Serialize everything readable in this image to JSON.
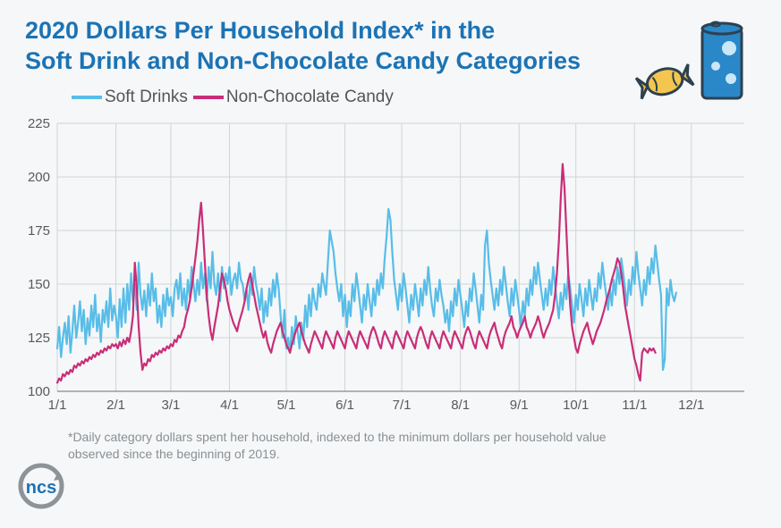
{
  "title_line1": "2020 Dollars Per Household Index* in the",
  "title_line2": "Soft Drink and Non-Chocolate Candy Categories",
  "title_color": "#1b73b5",
  "legend": [
    {
      "label": "Soft Drinks",
      "color": "#58bde8"
    },
    {
      "label": "Non-Chocolate Candy",
      "color": "#c92d78"
    }
  ],
  "footnote": "*Daily category dollars spent her household, indexed to the minimum dollars per household value observed since the beginning of 2019.",
  "logo_text": "ncs",
  "icons": {
    "can_color": "#2a88c9",
    "can_bubble_color": "#c9e7f7",
    "candy_color": "#f4c64f",
    "stroke": "#2d4150"
  },
  "chart": {
    "type": "line",
    "background_color": "#f5f7f8",
    "grid_color": "#d0d4d6",
    "axis_color": "#6b6e70",
    "axis_fontsize": 15,
    "ylim": [
      100,
      225
    ],
    "ytick_step": 25,
    "yticks": [
      100,
      125,
      150,
      175,
      200,
      225
    ],
    "x_count": 364,
    "xticks": [
      {
        "pos": 0,
        "label": "1/1"
      },
      {
        "pos": 31,
        "label": "2/1"
      },
      {
        "pos": 60,
        "label": "3/1"
      },
      {
        "pos": 91,
        "label": "4/1"
      },
      {
        "pos": 121,
        "label": "5/1"
      },
      {
        "pos": 152,
        "label": "6/1"
      },
      {
        "pos": 182,
        "label": "7/1"
      },
      {
        "pos": 213,
        "label": "8/1"
      },
      {
        "pos": 244,
        "label": "9/1"
      },
      {
        "pos": 274,
        "label": "10/1"
      },
      {
        "pos": 305,
        "label": "11/1"
      },
      {
        "pos": 335,
        "label": "12/1"
      }
    ],
    "line_width": 2.2,
    "series": [
      {
        "name": "Soft Drinks",
        "color": "#58bde8",
        "points": [
          120,
          130,
          116,
          125,
          132,
          122,
          135,
          118,
          128,
          140,
          125,
          132,
          142,
          128,
          138,
          122,
          134,
          126,
          140,
          130,
          145,
          128,
          136,
          123,
          138,
          132,
          142,
          130,
          148,
          133,
          140,
          135,
          125,
          143,
          130,
          148,
          132,
          150,
          138,
          155,
          142,
          150,
          138,
          160,
          145,
          138,
          147,
          135,
          150,
          140,
          155,
          142,
          148,
          132,
          140,
          130,
          145,
          135,
          148,
          140,
          144,
          135,
          148,
          152,
          143,
          155,
          140,
          148,
          138,
          152,
          144,
          158,
          150,
          142,
          152,
          145,
          160,
          148,
          155,
          142,
          158,
          148,
          165,
          150,
          145,
          155,
          142,
          158,
          148,
          155,
          150,
          158,
          145,
          152,
          155,
          148,
          160,
          152,
          150,
          142,
          148,
          138,
          152,
          145,
          158,
          150,
          145,
          138,
          148,
          132,
          142,
          135,
          148,
          140,
          152,
          144,
          155,
          148,
          135,
          125,
          138,
          120,
          125,
          118,
          130,
          122,
          135,
          128,
          120,
          132,
          124,
          140,
          130,
          145,
          135,
          148,
          142,
          138,
          150,
          144,
          155,
          150,
          145,
          160,
          175,
          170,
          165,
          155,
          148,
          142,
          150,
          135,
          145,
          130,
          142,
          135,
          150,
          142,
          155,
          148,
          140,
          132,
          145,
          138,
          150,
          142,
          135,
          148,
          140,
          152,
          145,
          155,
          148,
          162,
          172,
          185,
          180,
          165,
          152,
          145,
          138,
          150,
          142,
          155,
          148,
          140,
          132,
          145,
          138,
          150,
          143,
          135,
          148,
          140,
          152,
          145,
          158,
          148,
          140,
          135,
          148,
          142,
          152,
          145,
          140,
          132,
          138,
          128,
          142,
          135,
          148,
          140,
          152,
          145,
          138,
          130,
          142,
          135,
          148,
          142,
          155,
          148,
          140,
          132,
          145,
          138,
          168,
          175,
          160,
          152,
          145,
          138,
          148,
          140,
          152,
          145,
          158,
          150,
          142,
          135,
          148,
          140,
          152,
          145,
          138,
          130,
          142,
          135,
          148,
          140,
          152,
          145,
          158,
          150,
          160,
          152,
          145,
          138,
          148,
          140,
          152,
          145,
          158,
          150,
          142,
          134,
          146,
          138,
          150,
          143,
          155,
          148,
          140,
          132,
          145,
          138,
          150,
          143,
          135,
          148,
          140,
          152,
          145,
          138,
          148,
          142,
          155,
          148,
          160,
          152,
          145,
          138,
          148,
          140,
          152,
          145,
          158,
          150,
          162,
          155,
          148,
          140,
          152,
          145,
          158,
          150,
          165,
          155,
          148,
          140,
          152,
          145,
          158,
          150,
          162,
          155,
          168,
          160,
          152,
          145,
          110,
          115,
          148,
          140,
          152,
          145,
          142,
          146
        ]
      },
      {
        "name": "Non-Chocolate Candy",
        "color": "#c92d78",
        "points": [
          104,
          106,
          105,
          108,
          107,
          109,
          108,
          110,
          109,
          112,
          111,
          113,
          112,
          114,
          113,
          115,
          114,
          116,
          115,
          117,
          116,
          118,
          117,
          119,
          118,
          120,
          119,
          121,
          120,
          122,
          121,
          122,
          120,
          123,
          121,
          124,
          122,
          125,
          123,
          128,
          135,
          160,
          148,
          130,
          118,
          110,
          113,
          112,
          115,
          114,
          117,
          116,
          118,
          117,
          119,
          118,
          120,
          119,
          121,
          120,
          122,
          121,
          124,
          123,
          126,
          125,
          128,
          130,
          135,
          138,
          142,
          148,
          155,
          162,
          170,
          180,
          188,
          175,
          160,
          145,
          135,
          128,
          124,
          130,
          135,
          140,
          148,
          155,
          152,
          148,
          142,
          138,
          135,
          132,
          130,
          128,
          132,
          135,
          138,
          142,
          148,
          152,
          155,
          150,
          145,
          140,
          136,
          132,
          128,
          125,
          128,
          123,
          120,
          118,
          122,
          125,
          128,
          130,
          132,
          128,
          125,
          122,
          120,
          118,
          122,
          125,
          128,
          130,
          132,
          128,
          125,
          122,
          120,
          118,
          122,
          125,
          128,
          126,
          124,
          122,
          120,
          125,
          128,
          126,
          124,
          122,
          120,
          125,
          128,
          126,
          124,
          122,
          120,
          125,
          128,
          126,
          124,
          122,
          120,
          125,
          128,
          126,
          124,
          122,
          120,
          125,
          128,
          130,
          128,
          125,
          122,
          120,
          125,
          128,
          126,
          124,
          122,
          120,
          125,
          128,
          126,
          124,
          122,
          120,
          125,
          128,
          126,
          124,
          122,
          120,
          125,
          128,
          130,
          128,
          125,
          122,
          120,
          125,
          128,
          126,
          124,
          122,
          120,
          125,
          128,
          126,
          124,
          122,
          120,
          125,
          128,
          126,
          124,
          122,
          120,
          125,
          128,
          130,
          128,
          125,
          122,
          120,
          125,
          128,
          126,
          124,
          122,
          120,
          125,
          128,
          130,
          132,
          128,
          125,
          122,
          120,
          125,
          128,
          130,
          132,
          135,
          130,
          128,
          125,
          128,
          130,
          132,
          135,
          130,
          128,
          125,
          128,
          130,
          132,
          135,
          132,
          128,
          125,
          128,
          130,
          132,
          135,
          138,
          145,
          155,
          170,
          190,
          206,
          195,
          175,
          155,
          140,
          130,
          125,
          120,
          118,
          122,
          125,
          128,
          130,
          132,
          128,
          125,
          122,
          125,
          128,
          130,
          132,
          135,
          138,
          142,
          145,
          148,
          152,
          155,
          158,
          162,
          160,
          155,
          148,
          140,
          135,
          130,
          125,
          120,
          115,
          112,
          108,
          105,
          118,
          120,
          119,
          118,
          120,
          119,
          120,
          118
        ]
      }
    ]
  }
}
